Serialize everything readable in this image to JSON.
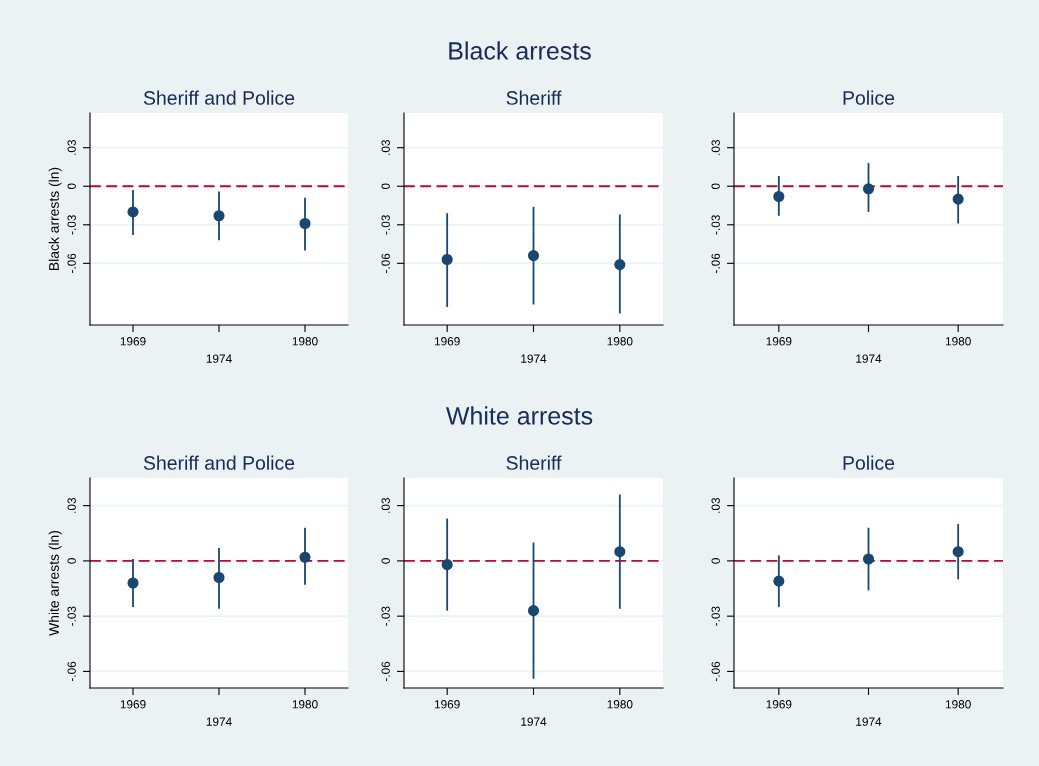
{
  "chart_data": [
    {
      "type": "scatter",
      "title": "Sheriff and Police",
      "ylabel": "Black arrests (ln)",
      "annotations": [
        "Black arrests"
      ],
      "categories": [
        "1969",
        "1974",
        "1980"
      ],
      "series": [
        {
          "color": "#1a476f",
          "values": [
            -0.02,
            -0.023,
            -0.029
          ],
          "errors": [
            [
              -0.038,
              -0.003
            ],
            [
              -0.042,
              -0.004
            ],
            [
              -0.05,
              -0.009
            ]
          ]
        }
      ],
      "ylim": [
        -0.108,
        0.057
      ],
      "yticks": [
        {
          "value": 0.03,
          "label": ".03"
        },
        0,
        {
          "value": -0.03,
          "label": "-.03"
        },
        {
          "value": -0.06,
          "label": "-.06"
        }
      ],
      "ref_lines": [
        {
          "axis": "y",
          "value": 0,
          "color": "#c10534",
          "line_style": "dashed"
        }
      ],
      "grid": "y",
      "marker": "circle"
    },
    {
      "type": "scatter",
      "title": "Sheriff",
      "categories": [
        "1969",
        "1974",
        "1980"
      ],
      "series": [
        {
          "color": "#1a476f",
          "values": [
            -0.057,
            -0.054,
            -0.061
          ],
          "errors": [
            [
              -0.094,
              -0.021
            ],
            [
              -0.092,
              -0.016
            ],
            [
              -0.099,
              -0.022
            ]
          ]
        }
      ],
      "ylim": [
        -0.108,
        0.057
      ],
      "yticks": [
        {
          "value": 0.03,
          "label": ".03"
        },
        0,
        {
          "value": -0.03,
          "label": "-.03"
        },
        {
          "value": -0.06,
          "label": "-.06"
        }
      ],
      "ref_lines": [
        {
          "axis": "y",
          "value": 0,
          "color": "#c10534",
          "line_style": "dashed"
        }
      ],
      "grid": "y",
      "marker": "circle"
    },
    {
      "type": "scatter",
      "title": "Police",
      "categories": [
        "1969",
        "1974",
        "1980"
      ],
      "series": [
        {
          "color": "#1a476f",
          "values": [
            -0.008,
            -0.002,
            -0.01
          ],
          "errors": [
            [
              -0.023,
              0.008
            ],
            [
              -0.02,
              0.018
            ],
            [
              -0.029,
              0.008
            ]
          ]
        }
      ],
      "ylim": [
        -0.108,
        0.057
      ],
      "yticks": [
        {
          "value": 0.03,
          "label": ".03"
        },
        0,
        {
          "value": -0.03,
          "label": "-.03"
        },
        {
          "value": -0.06,
          "label": "-.06"
        }
      ],
      "ref_lines": [
        {
          "axis": "y",
          "value": 0,
          "color": "#c10534",
          "line_style": "dashed"
        }
      ],
      "grid": "y",
      "marker": "circle"
    },
    {
      "type": "scatter",
      "title": "Sheriff and Police",
      "ylabel": "White arrests (ln)",
      "annotations": [
        "White arrests"
      ],
      "categories": [
        "1969",
        "1974",
        "1980"
      ],
      "series": [
        {
          "color": "#1a476f",
          "values": [
            -0.012,
            -0.009,
            0.002
          ],
          "errors": [
            [
              -0.025,
              0.001
            ],
            [
              -0.026,
              0.007
            ],
            [
              -0.013,
              0.018
            ]
          ]
        }
      ],
      "ylim": [
        -0.069,
        0.045
      ],
      "yticks": [
        {
          "value": 0.03,
          "label": ".03"
        },
        0,
        {
          "value": -0.03,
          "label": "-.03"
        },
        {
          "value": -0.06,
          "label": "-.06"
        }
      ],
      "ref_lines": [
        {
          "axis": "y",
          "value": 0,
          "color": "#c10534",
          "line_style": "dashed"
        }
      ],
      "grid": "y",
      "marker": "circle"
    },
    {
      "type": "scatter",
      "title": "Sheriff",
      "categories": [
        "1969",
        "1974",
        "1980"
      ],
      "series": [
        {
          "color": "#1a476f",
          "values": [
            -0.002,
            -0.027,
            0.005
          ],
          "errors": [
            [
              -0.027,
              0.023
            ],
            [
              -0.064,
              0.01
            ],
            [
              -0.026,
              0.036
            ]
          ]
        }
      ],
      "ylim": [
        -0.069,
        0.045
      ],
      "yticks": [
        {
          "value": 0.03,
          "label": ".03"
        },
        0,
        {
          "value": -0.03,
          "label": "-.03"
        },
        {
          "value": -0.06,
          "label": "-.06"
        }
      ],
      "ref_lines": [
        {
          "axis": "y",
          "value": 0,
          "color": "#c10534",
          "line_style": "dashed"
        }
      ],
      "grid": "y",
      "marker": "circle"
    },
    {
      "type": "scatter",
      "title": "Police",
      "categories": [
        "1969",
        "1974",
        "1980"
      ],
      "series": [
        {
          "color": "#1a476f",
          "values": [
            -0.011,
            0.001,
            0.005
          ],
          "errors": [
            [
              -0.025,
              0.003
            ],
            [
              -0.016,
              0.018
            ],
            [
              -0.01,
              0.02
            ]
          ]
        }
      ],
      "ylim": [
        -0.069,
        0.045
      ],
      "yticks": [
        {
          "value": 0.03,
          "label": ".03"
        },
        0,
        {
          "value": -0.03,
          "label": "-.03"
        },
        {
          "value": -0.06,
          "label": "-.06"
        }
      ],
      "ref_lines": [
        {
          "axis": "y",
          "value": 0,
          "color": "#c10534",
          "line_style": "dashed"
        }
      ],
      "grid": "y",
      "marker": "circle"
    }
  ]
}
